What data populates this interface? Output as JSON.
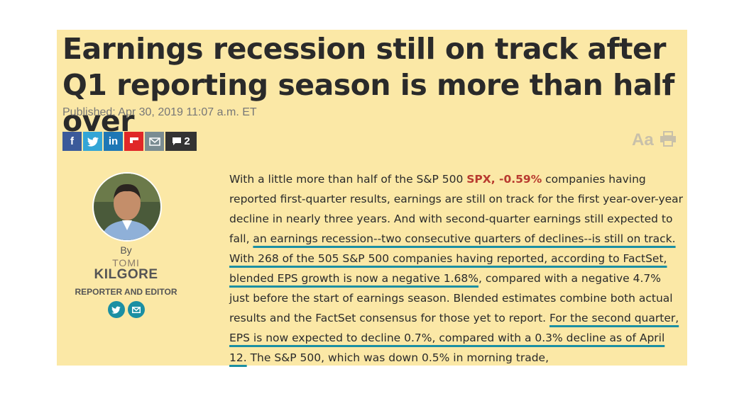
{
  "headline": "Earnings recession still on track after Q1 reporting season is more than half over",
  "published": "Published: Apr 30, 2019 11:07 a.m. ET",
  "share": {
    "comment_count": "2"
  },
  "tools": {
    "font_size_label": "Aa"
  },
  "author": {
    "by": "By",
    "first_name": "TOMI",
    "last_name": "KILGORE",
    "role": "REPORTER AND EDITOR"
  },
  "article": {
    "p1": "With a little more than half of the S&P 500 ",
    "ticker": "SPX, -0.59%",
    "p2": " companies having reported first-quarter results, earnings are still on track for the first year-over-year decline in nearly three years. And with second-quarter earnings still expected to fall, ",
    "h1": "an earnings recession--two consecutive quarters of declines--is still on track.",
    "p3": " ",
    "h2": "With 268 of the 505 S&P 500 companies having reported, according to FactSet, blended EPS growth is now a negative 1.68%",
    "p4": ", compared with a negative 4.7% just before the start of earnings season. Blended estimates combine both actual results and the FactSet consensus for those yet to report. ",
    "h3": "For the second quarter, EPS is now expected to decline 0.7%, compared with a 0.3% decline as of April 12.",
    "p5": " The S&P 500, which was down 0.5% in morning trade,"
  }
}
